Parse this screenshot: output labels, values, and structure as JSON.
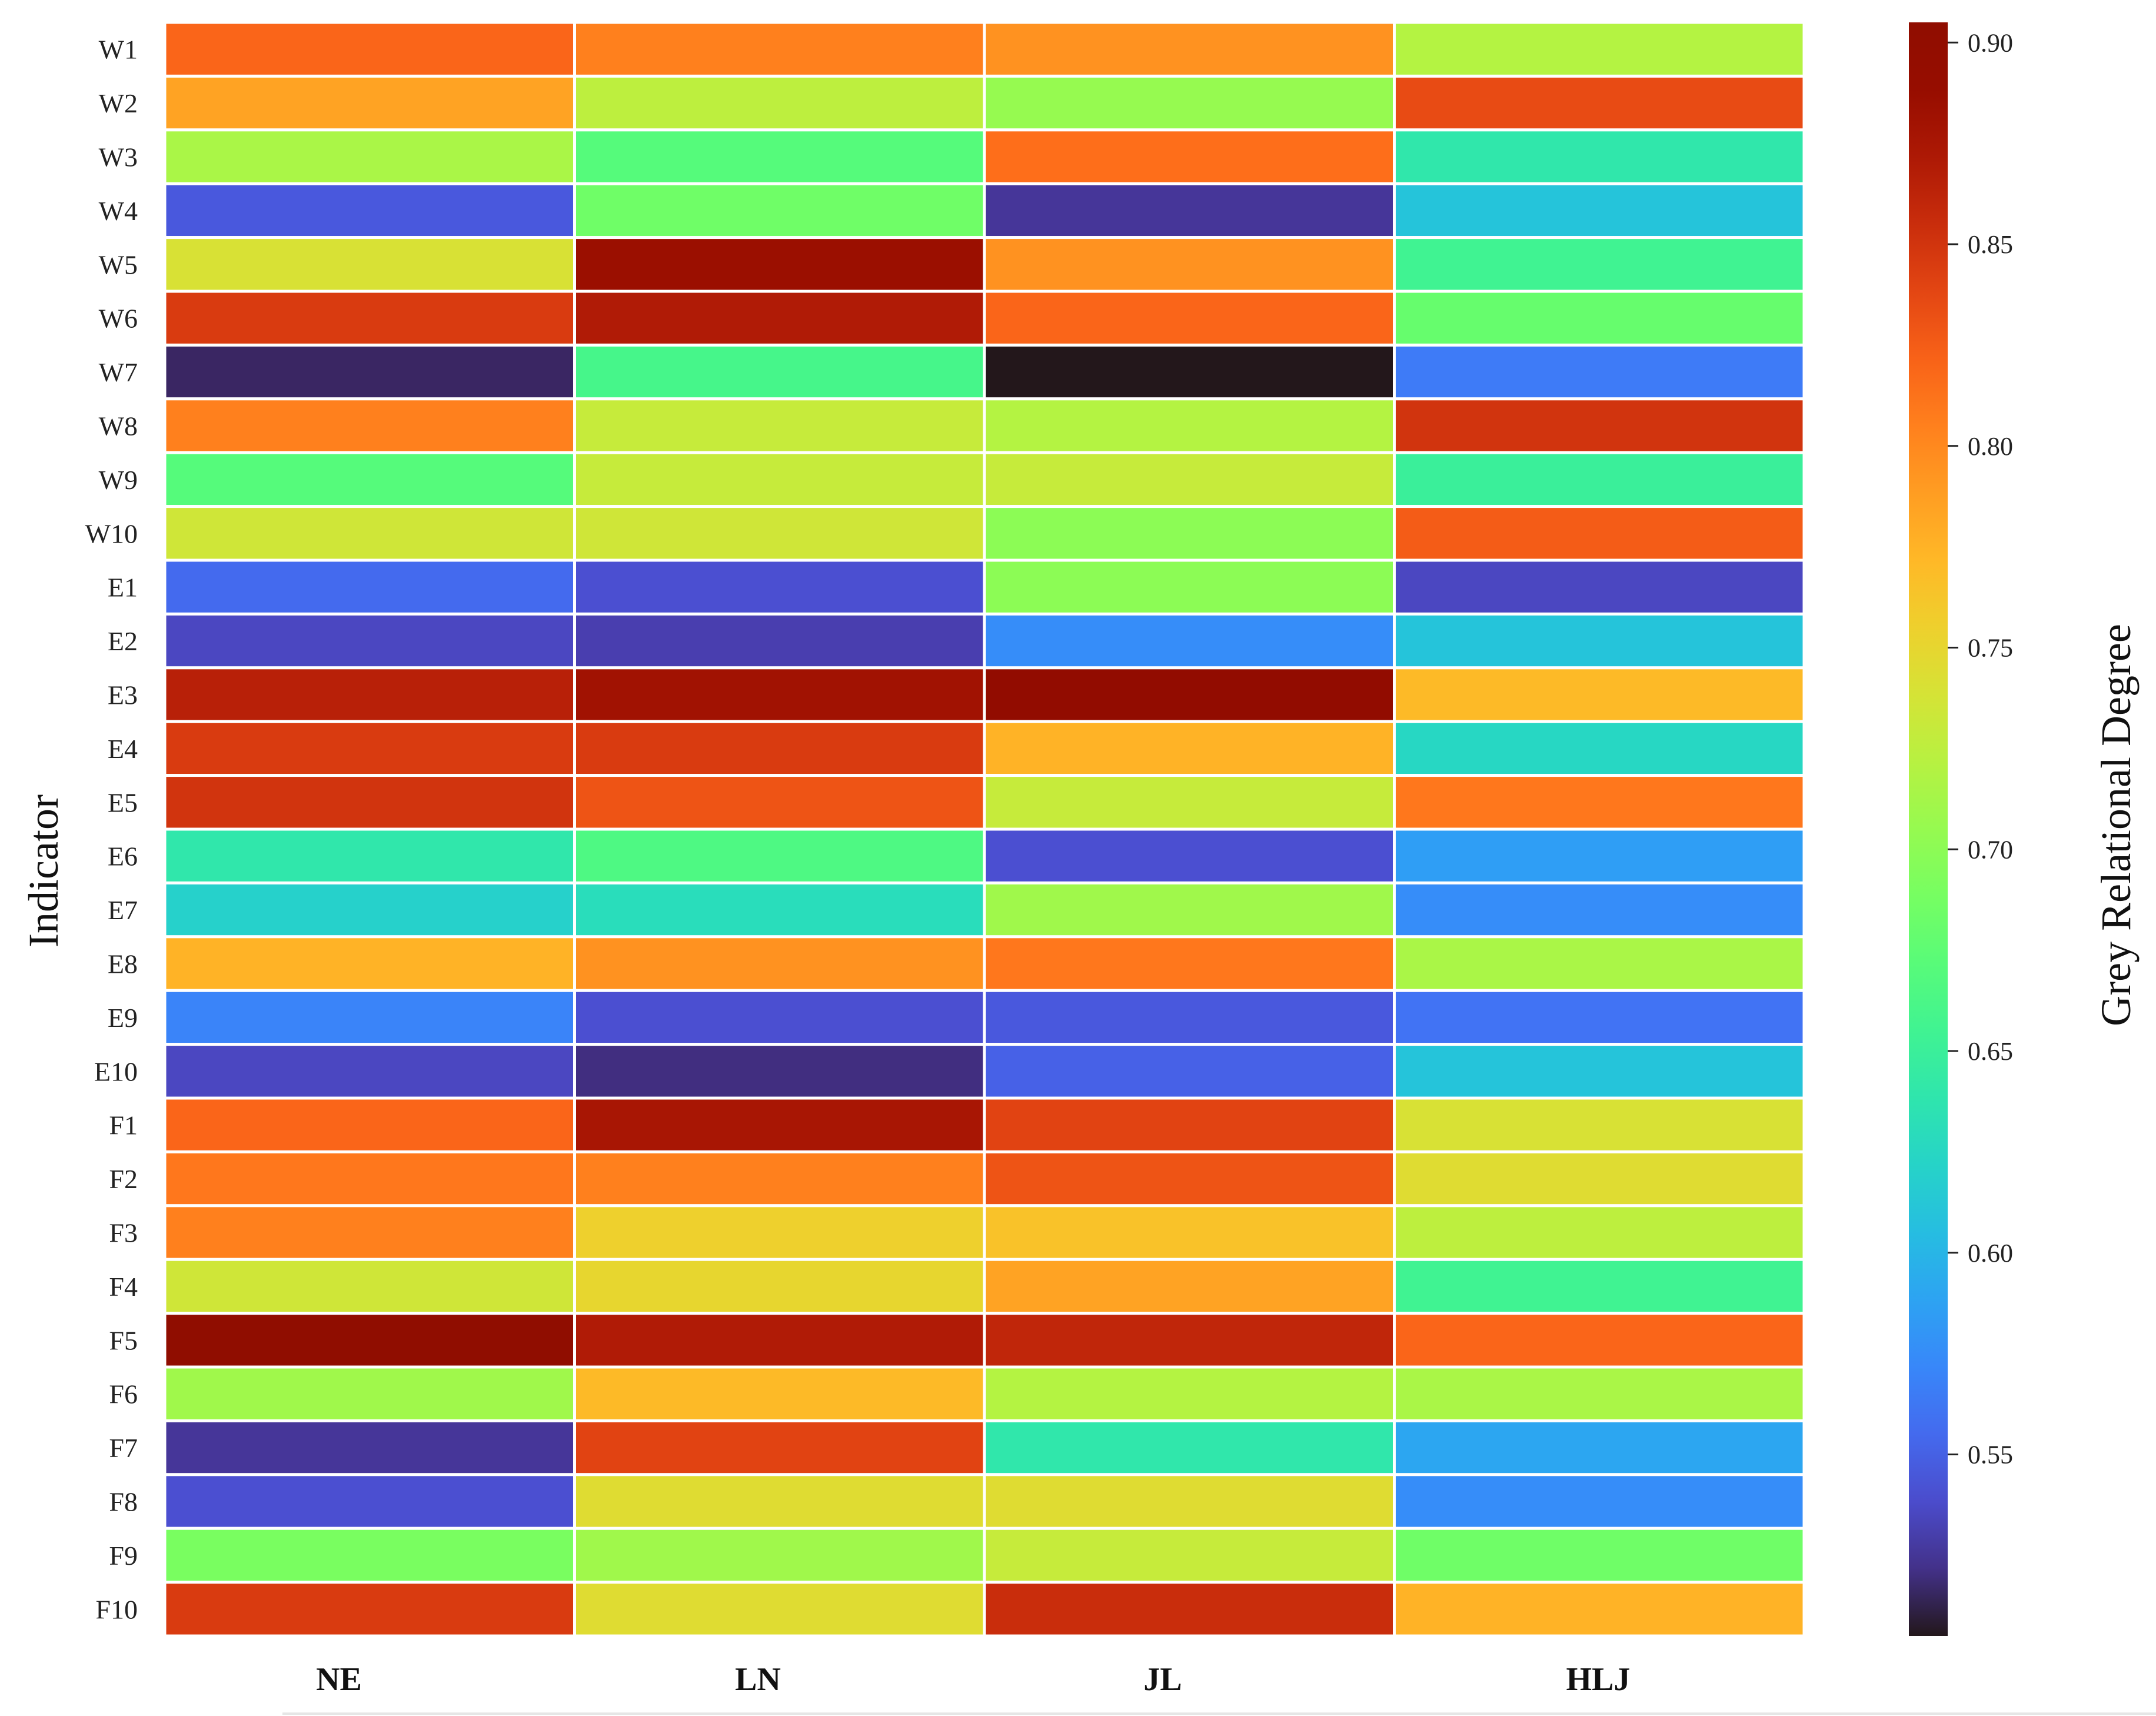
{
  "chart_data": {
    "type": "heatmap",
    "title": "",
    "xlabel": "",
    "ylabel": "Indicator",
    "colorbar_label": "Grey Relational Degree",
    "columns": [
      "NE",
      "LN",
      "JL",
      "HLJ"
    ],
    "rows": [
      "W1",
      "W2",
      "W3",
      "W4",
      "W5",
      "W6",
      "W7",
      "W8",
      "W9",
      "W10",
      "E1",
      "E2",
      "E3",
      "E4",
      "E5",
      "E6",
      "E7",
      "E8",
      "E9",
      "E10",
      "F1",
      "F2",
      "F3",
      "F4",
      "F5",
      "F6",
      "F7",
      "F8",
      "F9",
      "F10"
    ],
    "values": [
      [
        0.82,
        0.805,
        0.795,
        0.72
      ],
      [
        0.785,
        0.725,
        0.705,
        0.835
      ],
      [
        0.715,
        0.67,
        0.815,
        0.64
      ],
      [
        0.545,
        0.685,
        0.525,
        0.61
      ],
      [
        0.74,
        0.885,
        0.795,
        0.655
      ],
      [
        0.845,
        0.87,
        0.82,
        0.68
      ],
      [
        0.515,
        0.66,
        0.505,
        0.565
      ],
      [
        0.805,
        0.73,
        0.72,
        0.85
      ],
      [
        0.67,
        0.73,
        0.73,
        0.65
      ],
      [
        0.735,
        0.735,
        0.7,
        0.825
      ],
      [
        0.555,
        0.54,
        0.7,
        0.535
      ],
      [
        0.535,
        0.53,
        0.575,
        0.61
      ],
      [
        0.865,
        0.88,
        0.895,
        0.77
      ],
      [
        0.845,
        0.845,
        0.775,
        0.625
      ],
      [
        0.85,
        0.83,
        0.73,
        0.81
      ],
      [
        0.64,
        0.665,
        0.54,
        0.585
      ],
      [
        0.62,
        0.63,
        0.71,
        0.575
      ],
      [
        0.775,
        0.795,
        0.81,
        0.715
      ],
      [
        0.57,
        0.54,
        0.545,
        0.56
      ],
      [
        0.535,
        0.52,
        0.55,
        0.61
      ],
      [
        0.82,
        0.875,
        0.84,
        0.74
      ],
      [
        0.81,
        0.805,
        0.83,
        0.745
      ],
      [
        0.805,
        0.755,
        0.765,
        0.725
      ],
      [
        0.735,
        0.75,
        0.785,
        0.655
      ],
      [
        0.905,
        0.87,
        0.86,
        0.82
      ],
      [
        0.71,
        0.77,
        0.72,
        0.715
      ],
      [
        0.525,
        0.84,
        0.64,
        0.59
      ],
      [
        0.54,
        0.745,
        0.745,
        0.575
      ],
      [
        0.69,
        0.71,
        0.73,
        0.685
      ],
      [
        0.845,
        0.745,
        0.855,
        0.775
      ]
    ],
    "colorbar_range": [
      0.505,
      0.905
    ],
    "colorbar_ticks": [
      "0.55",
      "0.60",
      "0.65",
      "0.70",
      "0.75",
      "0.80",
      "0.85",
      "0.90"
    ],
    "colormap": "turbo",
    "legend_position": "right"
  }
}
